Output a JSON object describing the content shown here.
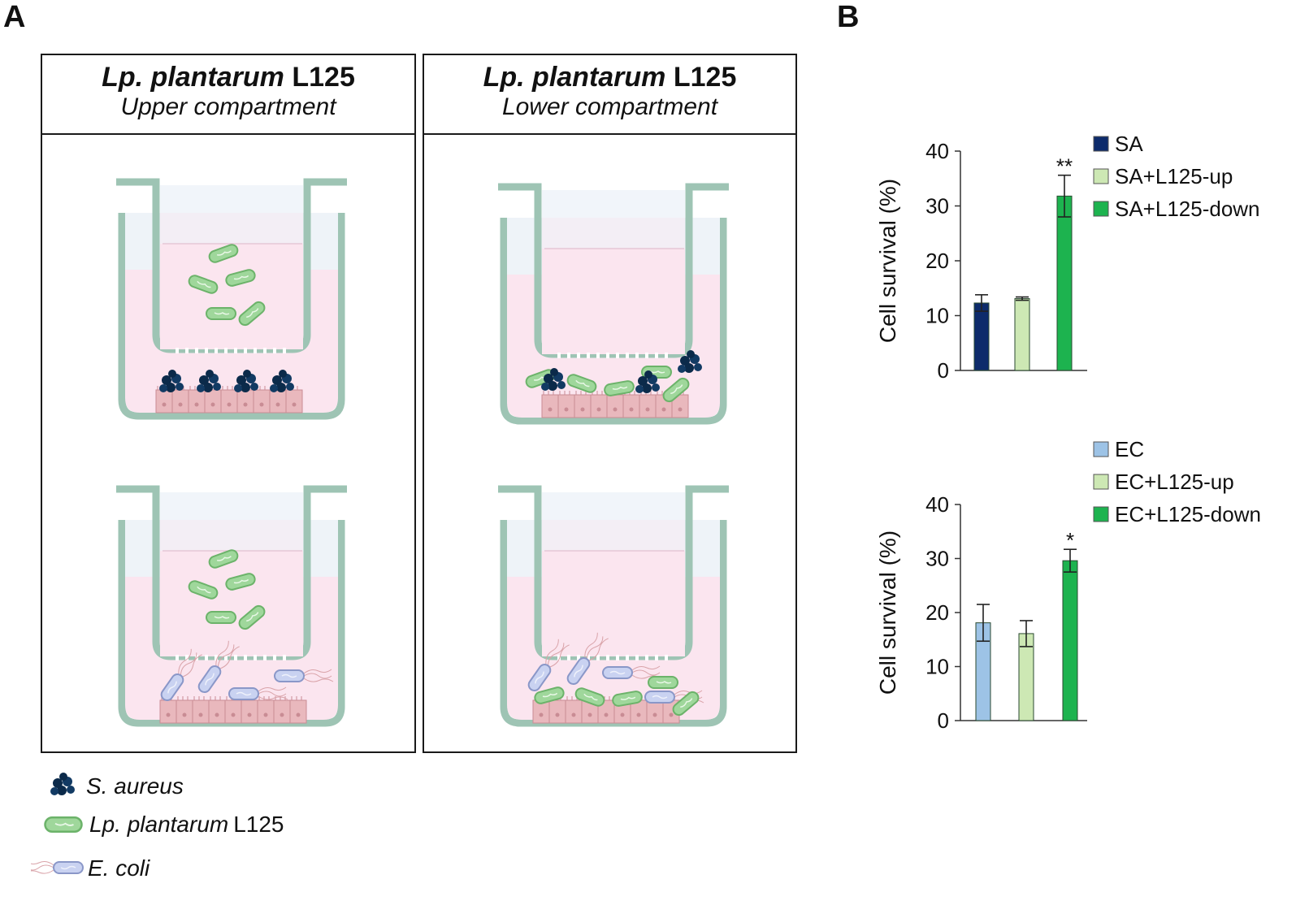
{
  "panel_a": {
    "letter": "A",
    "left_header": {
      "species": "Lp. plantarum",
      "strain": "L125",
      "subtitle": "Upper compartment"
    },
    "right_header": {
      "species": "Lp. plantarum",
      "strain": "L125",
      "subtitle": "Lower compartment"
    },
    "legend": [
      {
        "icon": "s-aureus-cluster-icon",
        "species": "S. aureus",
        "strain": ""
      },
      {
        "icon": "lp-plantarum-rod-icon",
        "species": "Lp. plantarum",
        "strain": "L125"
      },
      {
        "icon": "e-coli-flagellated-icon",
        "species": "E. coli",
        "strain": ""
      }
    ]
  },
  "panel_b": {
    "letter": "B"
  },
  "colors": {
    "sa": "#0d2b6b",
    "up": "#cde8b4",
    "down": "#1db34f",
    "ec": "#9dc3e6",
    "well": "#dceee6",
    "well_stroke": "#9ec4b4",
    "medium": "#fbe5ef",
    "cells": "#e9b8bd",
    "lp": "#9fd79b",
    "ecoli": "#c9d2f1"
  },
  "chart_data": [
    {
      "type": "bar",
      "title": "",
      "xlabel": "",
      "ylabel": "Cell survival (%)",
      "ylim": [
        0,
        40
      ],
      "yticks": [
        0,
        10,
        20,
        30,
        40
      ],
      "categories": [
        "SA",
        "SA+L125-up",
        "SA+L125-down"
      ],
      "values": [
        12.3,
        13.1,
        31.8
      ],
      "errors": [
        1.5,
        0.3,
        3.8
      ],
      "significance": [
        "",
        "",
        "**"
      ],
      "colors": [
        "#0d2b6b",
        "#cde8b4",
        "#1db34f"
      ],
      "legend": [
        "SA",
        "SA+L125-up",
        "SA+L125-down"
      ],
      "legend_position": "right"
    },
    {
      "type": "bar",
      "title": "",
      "xlabel": "",
      "ylabel": "Cell survival (%)",
      "ylim": [
        0,
        40
      ],
      "yticks": [
        0,
        10,
        20,
        30,
        40
      ],
      "categories": [
        "EC",
        "EC+L125-up",
        "EC+L125-down"
      ],
      "values": [
        18.1,
        16.1,
        29.6
      ],
      "errors": [
        3.4,
        2.4,
        2.1
      ],
      "significance": [
        "",
        "",
        "*"
      ],
      "colors": [
        "#9dc3e6",
        "#cde8b4",
        "#1db34f"
      ],
      "legend": [
        "EC",
        "EC+L125-up",
        "EC+L125-down"
      ],
      "legend_position": "top-right"
    }
  ]
}
